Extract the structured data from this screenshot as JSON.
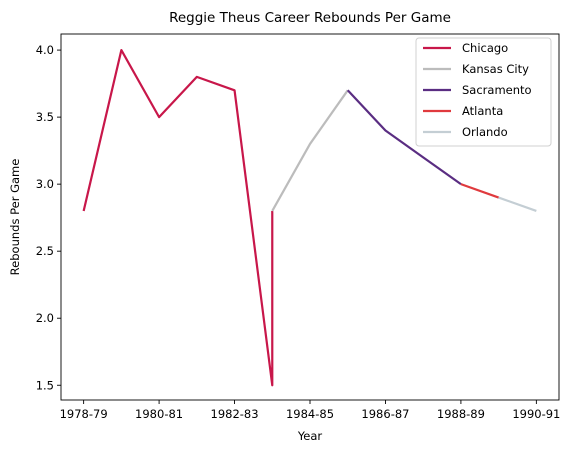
{
  "chart_data": {
    "type": "line",
    "title": "Reggie Theus Career Rebounds Per Game",
    "xlabel": "Year",
    "ylabel": "Rebounds Per Game",
    "x_tick_labels": [
      "1978-79",
      "1980-81",
      "1982-83",
      "1984-85",
      "1986-87",
      "1988-89",
      "1990-91"
    ],
    "x_tick_positions": [
      0,
      2,
      4,
      6,
      8,
      10,
      12
    ],
    "xlim": [
      -0.6,
      12.6
    ],
    "ylim": [
      1.39,
      4.12
    ],
    "y_ticks": [
      1.5,
      2.0,
      2.5,
      3.0,
      3.5,
      4.0
    ],
    "y_tick_labels": [
      "1.5",
      "2.0",
      "2.5",
      "3.0",
      "3.5",
      "4.0"
    ],
    "grid": false,
    "legend_position": "top-right",
    "series": [
      {
        "name": "Chicago",
        "color": "#c8174a",
        "points": [
          [
            0,
            2.8
          ],
          [
            1,
            4.0
          ],
          [
            2,
            3.5
          ],
          [
            3,
            3.8
          ],
          [
            4,
            3.7
          ],
          [
            5,
            1.5
          ],
          [
            5,
            2.8
          ]
        ]
      },
      {
        "name": "Kansas City",
        "color": "#bcbcbc",
        "points": [
          [
            5,
            2.8
          ],
          [
            6,
            3.3
          ],
          [
            7,
            3.7
          ]
        ]
      },
      {
        "name": "Sacramento",
        "color": "#5a2d82",
        "points": [
          [
            7,
            3.7
          ],
          [
            8,
            3.4
          ],
          [
            9,
            3.2
          ],
          [
            10,
            3.0
          ]
        ]
      },
      {
        "name": "Atlanta",
        "color": "#e03a3e",
        "points": [
          [
            10,
            3.0
          ],
          [
            11,
            2.9
          ]
        ]
      },
      {
        "name": "Orlando",
        "color": "#c4ced4",
        "points": [
          [
            11,
            2.9
          ],
          [
            12,
            2.8
          ]
        ]
      }
    ]
  }
}
